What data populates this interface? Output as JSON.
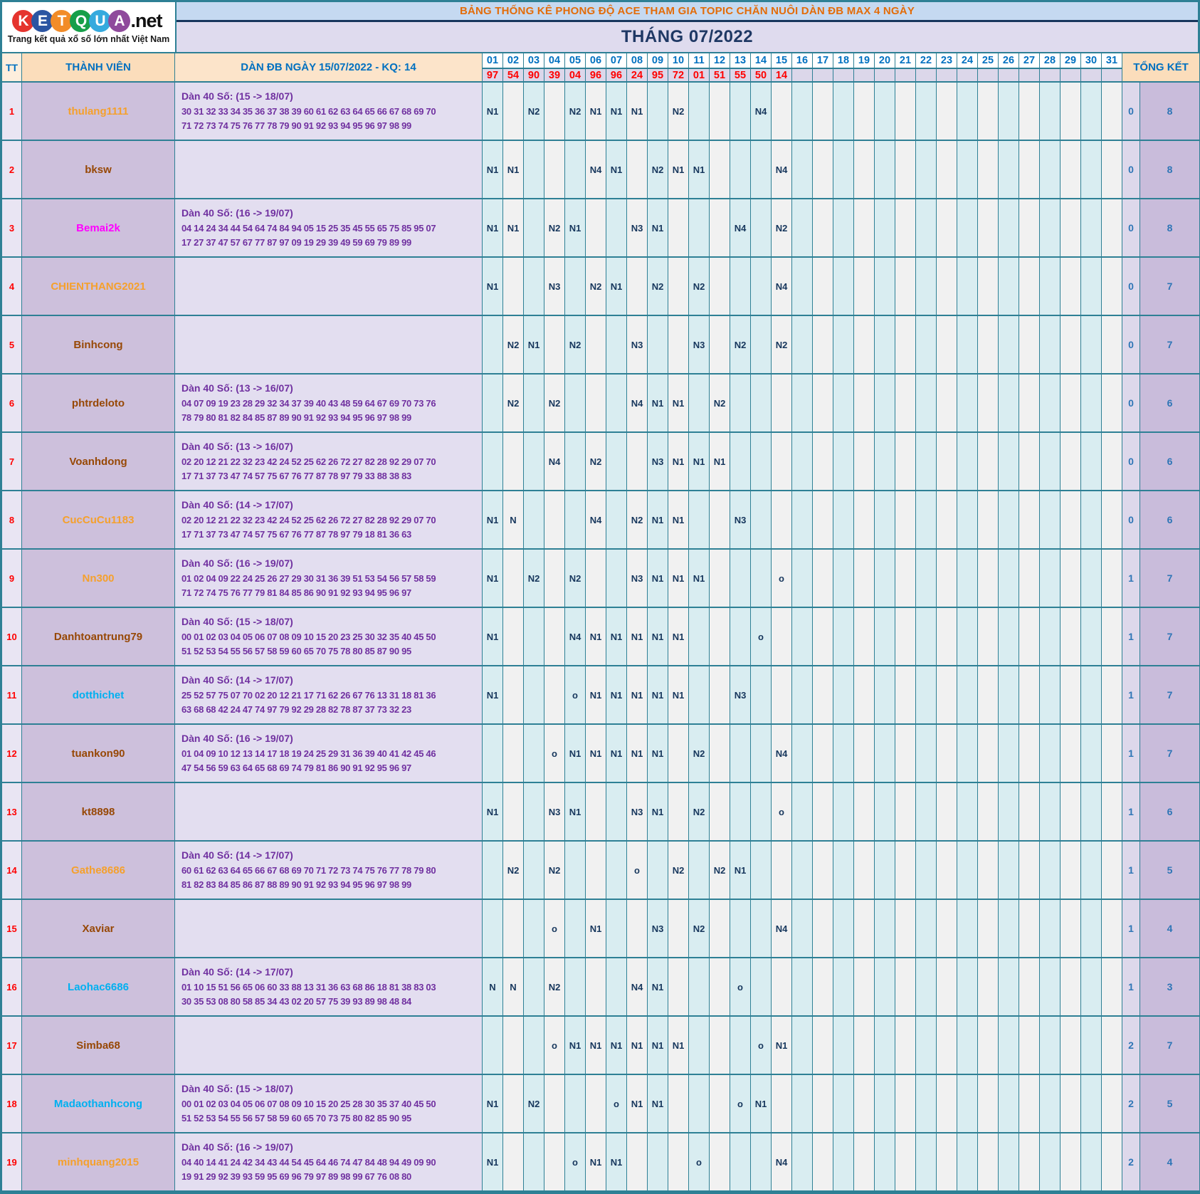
{
  "logo": {
    "letters": [
      {
        "ch": "K",
        "color": "#e5342e"
      },
      {
        "ch": "E",
        "color": "#2b55a2"
      },
      {
        "ch": "T",
        "color": "#f28c28"
      },
      {
        "ch": "Q",
        "color": "#169f49"
      },
      {
        "ch": "U",
        "color": "#35aade"
      },
      {
        "ch": "A",
        "color": "#8f4a9c"
      }
    ],
    "suffix": ".net",
    "tagline": "Trang kết quả xổ số lớn nhất Việt Nam"
  },
  "banner": {
    "title": "BẢNG THỐNG KÊ PHONG ĐỘ ACE THAM GIA TOPIC CHĂN NUÔI DÀN ĐB MAX 4 NGÀY"
  },
  "month_title": "THÁNG 07/2022",
  "colors": {
    "grid_teal": "#2e8095",
    "banner_bg": "#c5d9f1",
    "banner_text": "#e36c09",
    "month_bg": "#dfdbee",
    "month_text": "#1f3864",
    "header_peach": "#fbddbb",
    "day_header_blue": "#0070c0",
    "result_red": "#ff0000",
    "marker_navy": "#16365c",
    "dan_purple": "#7030a0",
    "tk_blue": "#2e75b6",
    "names": {
      "orange": "#f5a02c",
      "brown": "#974806",
      "magenta": "#ff00ff",
      "cyan": "#00b0f0"
    }
  },
  "table": {
    "headers": {
      "tt": "TT",
      "member": "THÀNH VIÊN",
      "dan": "DÀN ĐB NGÀY 15/07/2022 - KQ: 14",
      "total": "TỔNG KẾT"
    },
    "days": [
      "01",
      "02",
      "03",
      "04",
      "05",
      "06",
      "07",
      "08",
      "09",
      "10",
      "11",
      "12",
      "13",
      "14",
      "15",
      "16",
      "17",
      "18",
      "19",
      "20",
      "21",
      "22",
      "23",
      "24",
      "25",
      "26",
      "27",
      "28",
      "29",
      "30",
      "31"
    ],
    "results": [
      "97",
      "54",
      "90",
      "39",
      "04",
      "96",
      "96",
      "24",
      "95",
      "72",
      "01",
      "51",
      "55",
      "50",
      "14"
    ],
    "cyan_columns": [
      1,
      3,
      5,
      7,
      9,
      11,
      13,
      14,
      16,
      18,
      20,
      22,
      24,
      26,
      28,
      30
    ],
    "rows": [
      {
        "tt": "1",
        "name": "thulang1111",
        "name_color": "orange",
        "dan_label": "Dàn 40 Số: (15 -> 18/07)",
        "dan_line1": "30 31 32 33 34 35 36 37 38 39 60 61 62 63 64 65 66 67 68 69 70",
        "dan_line2": "71 72 73 74 75 76 77 78 79 90 91 92 93 94 95 96 97 98 99",
        "marks": {
          "1": "N1",
          "3": "N2",
          "5": "N2",
          "6": "N1",
          "7": "N1",
          "8": "N1",
          "10": "N2",
          "14": "N4"
        },
        "tk1": "0",
        "tk2": "8"
      },
      {
        "tt": "2",
        "name": "bksw",
        "name_color": "brown",
        "dan_label": "",
        "dan_line1": "",
        "dan_line2": "",
        "marks": {
          "1": "N1",
          "2": "N1",
          "6": "N4",
          "7": "N1",
          "9": "N2",
          "10": "N1",
          "11": "N1",
          "15": "N4"
        },
        "tk1": "0",
        "tk2": "8"
      },
      {
        "tt": "3",
        "name": "Bemai2k",
        "name_color": "magenta",
        "dan_label": "Dàn 40 Số: (16 -> 19/07)",
        "dan_line1": "04 14 24 34 44 54 64 74 84 94 05 15 25 35 45 55 65 75 85 95 07",
        "dan_line2": "17 27 37 47 57 67 77 87 97 09 19 29 39 49 59 69 79 89 99",
        "marks": {
          "1": "N1",
          "2": "N1",
          "4": "N2",
          "5": "N1",
          "8": "N3",
          "9": "N1",
          "13": "N4",
          "15": "N2"
        },
        "tk1": "0",
        "tk2": "8"
      },
      {
        "tt": "4",
        "name": "CHIENTHANG2021",
        "name_color": "orange",
        "dan_label": "",
        "dan_line1": "",
        "dan_line2": "",
        "marks": {
          "1": "N1",
          "4": "N3",
          "6": "N2",
          "7": "N1",
          "9": "N2",
          "11": "N2",
          "15": "N4"
        },
        "tk1": "0",
        "tk2": "7"
      },
      {
        "tt": "5",
        "name": "Binhcong",
        "name_color": "brown",
        "dan_label": "",
        "dan_line1": "",
        "dan_line2": "",
        "marks": {
          "2": "N2",
          "3": "N1",
          "5": "N2",
          "8": "N3",
          "11": "N3",
          "13": "N2",
          "15": "N2"
        },
        "tk1": "0",
        "tk2": "7"
      },
      {
        "tt": "6",
        "name": "phtrdeloto",
        "name_color": "brown",
        "dan_label": "Dàn 40 Số: (13 -> 16/07)",
        "dan_line1": "04 07 09 19 23 28 29 32 34 37 39 40 43 48 59 64 67 69 70 73 76",
        "dan_line2": "78 79 80 81 82 84 85 87 89 90 91 92 93 94 95 96 97 98 99",
        "marks": {
          "2": "N2",
          "4": "N2",
          "8": "N4",
          "9": "N1",
          "10": "N1",
          "12": "N2"
        },
        "tk1": "0",
        "tk2": "6"
      },
      {
        "tt": "7",
        "name": "Voanhdong",
        "name_color": "brown",
        "dan_label": "Dàn 40 Số: (13 -> 16/07)",
        "dan_line1": "02 20 12 21 22 32 23 42 24 52 25 62 26 72 27 82 28 92 29 07 70",
        "dan_line2": "17 71 37 73 47 74 57 75 67 76 77 87 78 97 79 33 88 38 83",
        "marks": {
          "4": "N4",
          "6": "N2",
          "9": "N3",
          "10": "N1",
          "11": "N1",
          "12": "N1"
        },
        "tk1": "0",
        "tk2": "6"
      },
      {
        "tt": "8",
        "name": "CucCuCu1183",
        "name_color": "orange",
        "dan_label": "Dàn 40 Số: (14 -> 17/07)",
        "dan_line1": "02 20 12 21 22 32 23 42 24 52 25 62 26 72 27 82 28 92 29 07 70",
        "dan_line2": "17 71 37 73 47 74 57 75 67 76 77 87 78 97 79 18 81 36 63",
        "marks": {
          "1": "N1",
          "2": "N",
          "6": "N4",
          "8": "N2",
          "9": "N1",
          "10": "N1",
          "13": "N3"
        },
        "tk1": "0",
        "tk2": "6"
      },
      {
        "tt": "9",
        "name": "Nn300",
        "name_color": "orange",
        "dan_label": "Dàn 40 Số: (16 -> 19/07)",
        "dan_line1": "01 02 04 09 22 24 25 26 27 29 30 31 36 39 51 53 54 56 57 58 59",
        "dan_line2": "71 72 74 75 76 77 79 81 84 85 86 90 91 92 93 94 95 96 97",
        "marks": {
          "1": "N1",
          "3": "N2",
          "5": "N2",
          "8": "N3",
          "9": "N1",
          "10": "N1",
          "11": "N1",
          "15": "o"
        },
        "tk1": "1",
        "tk2": "7"
      },
      {
        "tt": "10",
        "name": "Danhtoantrung79",
        "name_color": "brown",
        "dan_label": "Dàn 40 Số: (15 -> 18/07)",
        "dan_line1": "00 01 02 03 04 05 06 07 08 09 10 15 20 23 25 30 32 35 40 45 50",
        "dan_line2": "51 52 53 54 55 56 57 58 59 60 65 70 75 78 80 85 87 90 95",
        "marks": {
          "1": "N1",
          "5": "N4",
          "6": "N1",
          "7": "N1",
          "8": "N1",
          "9": "N1",
          "10": "N1",
          "14": "o"
        },
        "tk1": "1",
        "tk2": "7"
      },
      {
        "tt": "11",
        "name": "dotthichet",
        "name_color": "cyan",
        "dan_label": "Dàn 40 Số: (14 -> 17/07)",
        "dan_line1": "25 52 57 75 07 70 02 20 12 21 17 71 62 26 67 76 13 31 18 81 36",
        "dan_line2": "63 68 68 42 24 47 74 97 79 92 29 28 82 78 87 37 73 32 23",
        "marks": {
          "1": "N1",
          "5": "o",
          "6": "N1",
          "7": "N1",
          "8": "N1",
          "9": "N1",
          "10": "N1",
          "13": "N3"
        },
        "tk1": "1",
        "tk2": "7"
      },
      {
        "tt": "12",
        "name": "tuankon90",
        "name_color": "brown",
        "dan_label": "Dàn 40 Số: (16 -> 19/07)",
        "dan_line1": "01 04 09 10 12 13 14 17 18 19 24 25 29 31 36 39 40 41 42 45 46",
        "dan_line2": "47 54 56 59 63 64 65 68 69 74 79 81 86 90 91 92 95 96 97",
        "marks": {
          "4": "o",
          "5": "N1",
          "6": "N1",
          "7": "N1",
          "8": "N1",
          "9": "N1",
          "11": "N2",
          "15": "N4"
        },
        "tk1": "1",
        "tk2": "7"
      },
      {
        "tt": "13",
        "name": "kt8898",
        "name_color": "brown",
        "dan_label": "",
        "dan_line1": "",
        "dan_line2": "",
        "marks": {
          "1": "N1",
          "4": "N3",
          "5": "N1",
          "8": "N3",
          "9": "N1",
          "11": "N2",
          "15": "o"
        },
        "tk1": "1",
        "tk2": "6"
      },
      {
        "tt": "14",
        "name": "Gathe8686",
        "name_color": "orange",
        "dan_label": "Dàn 40 Số: (14 -> 17/07)",
        "dan_line1": "60 61 62 63 64 65 66 67 68 69 70 71 72 73 74 75 76 77 78 79 80",
        "dan_line2": "81 82 83 84 85 86 87 88 89 90 91 92 93 94 95 96 97 98 99",
        "marks": {
          "2": "N2",
          "4": "N2",
          "8": "o",
          "10": "N2",
          "12": "N2",
          "13": "N1"
        },
        "tk1": "1",
        "tk2": "5"
      },
      {
        "tt": "15",
        "name": "Xaviar",
        "name_color": "brown",
        "dan_label": "",
        "dan_line1": "",
        "dan_line2": "",
        "marks": {
          "4": "o",
          "6": "N1",
          "9": "N3",
          "11": "N2",
          "15": "N4"
        },
        "tk1": "1",
        "tk2": "4"
      },
      {
        "tt": "16",
        "name": "Laohac6686",
        "name_color": "cyan",
        "dan_label": "Dàn 40 Số: (14 -> 17/07)",
        "dan_line1": "01 10 15 51 56 65 06 60 33 88 13 31 36 63 68 86 18 81 38 83 03",
        "dan_line2": "30 35 53 08 80 58 85 34 43 02 20 57 75 39 93 89 98 48 84",
        "marks": {
          "1": "N",
          "2": "N",
          "4": "N2",
          "8": "N4",
          "9": "N1",
          "13": "o"
        },
        "tk1": "1",
        "tk2": "3"
      },
      {
        "tt": "17",
        "name": "Simba68",
        "name_color": "brown",
        "dan_label": "",
        "dan_line1": "",
        "dan_line2": "",
        "marks": {
          "4": "o",
          "5": "N1",
          "6": "N1",
          "7": "N1",
          "8": "N1",
          "9": "N1",
          "10": "N1",
          "14": "o",
          "15": "N1"
        },
        "tk1": "2",
        "tk2": "7"
      },
      {
        "tt": "18",
        "name": "Madaothanhcong",
        "name_color": "cyan",
        "dan_label": "Dàn 40 Số: (15 -> 18/07)",
        "dan_line1": "00 01 02 03 04 05 06 07 08 09 10 15 20 25 28 30 35 37 40 45 50",
        "dan_line2": "51 52 53 54 55 56 57 58 59 60 65 70 73 75 80 82 85 90 95",
        "marks": {
          "1": "N1",
          "3": "N2",
          "7": "o",
          "8": "N1",
          "9": "N1",
          "13": "o",
          "14": "N1"
        },
        "tk1": "2",
        "tk2": "5"
      },
      {
        "tt": "19",
        "name": "minhquang2015",
        "name_color": "orange",
        "dan_label": "Dàn 40 Số: (16 -> 19/07)",
        "dan_line1": "04 40 14 41 24 42 34 43 44 54 45 64 46 74 47 84 48 94 49 09 90",
        "dan_line2": "19 91 29 92 39 93 59 95 69 96 79 97 89 98 99 67 76 08 80",
        "marks": {
          "1": "N1",
          "5": "o",
          "6": "N1",
          "7": "N1",
          "11": "o",
          "15": "N4"
        },
        "tk1": "2",
        "tk2": "4"
      }
    ]
  }
}
